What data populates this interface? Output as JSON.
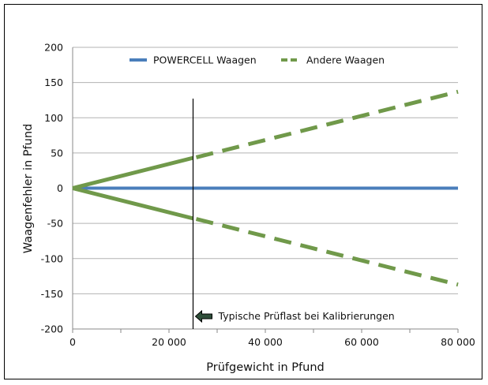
{
  "chart_data": {
    "type": "line",
    "xlabel": "Prüfgewicht in Pfund",
    "ylabel": "Waagenfehler in Pfund",
    "xlim": [
      0,
      80000
    ],
    "ylim": [
      -200,
      200
    ],
    "x_ticks": [
      0,
      20000,
      40000,
      60000,
      80000
    ],
    "x_tick_labels": [
      "0",
      "20 000",
      "40 000",
      "60 000",
      "80 000"
    ],
    "y_ticks": [
      200,
      150,
      100,
      50,
      0,
      -50,
      -100,
      -150,
      -200
    ],
    "y_tick_labels": [
      "200",
      "150",
      "100",
      "50",
      "0",
      "-50",
      "-100",
      "-150",
      "-200"
    ],
    "x_minor_step": 10000,
    "grid": "horizontal",
    "legend": "top",
    "series": [
      {
        "name": "POWERCELL Waagen",
        "color": "#4a7ebb",
        "style": "solid",
        "x": [
          0,
          80000
        ],
        "y": [
          0,
          0
        ]
      },
      {
        "name": "Andere Waagen",
        "color": "#70994a",
        "style": "solid-then-dashed",
        "branches": [
          {
            "x": [
              0,
              25000,
              80000
            ],
            "y": [
              0,
              43,
              137
            ]
          },
          {
            "x": [
              0,
              25000,
              80000
            ],
            "y": [
              0,
              -43,
              -137
            ]
          }
        ]
      }
    ],
    "annotation": {
      "text": "Typische Prüflast bei Kalibrierungen",
      "x": 25000,
      "marker": "left-arrow"
    }
  }
}
